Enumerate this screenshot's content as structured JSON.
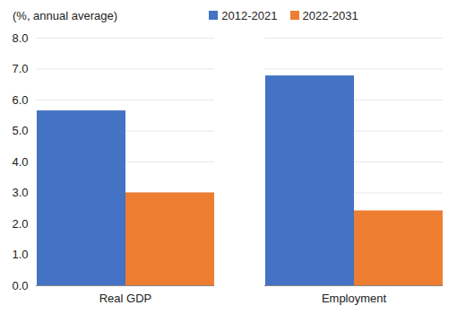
{
  "chart_data": {
    "type": "bar",
    "title": "(%, annual average)",
    "categories": [
      "Real GDP",
      "Employment"
    ],
    "series": [
      {
        "name": "2012-2021",
        "color": "#4472c4",
        "values": [
          5.65,
          6.78
        ]
      },
      {
        "name": "2022-2031",
        "color": "#ed7d31",
        "values": [
          3.0,
          2.42
        ]
      }
    ],
    "ylim": [
      0,
      8
    ],
    "yticks": [
      {
        "value": 0,
        "label": "0.0"
      },
      {
        "value": 1,
        "label": "1.0"
      },
      {
        "value": 2,
        "label": "2.0"
      },
      {
        "value": 3,
        "label": "3.0"
      },
      {
        "value": 4,
        "label": "4.0"
      },
      {
        "value": 5,
        "label": "5.0"
      },
      {
        "value": 6,
        "label": "6.0"
      },
      {
        "value": 7,
        "label": "7.0"
      },
      {
        "value": 8,
        "label": "8.0"
      }
    ],
    "grid": true,
    "legend": "top"
  }
}
